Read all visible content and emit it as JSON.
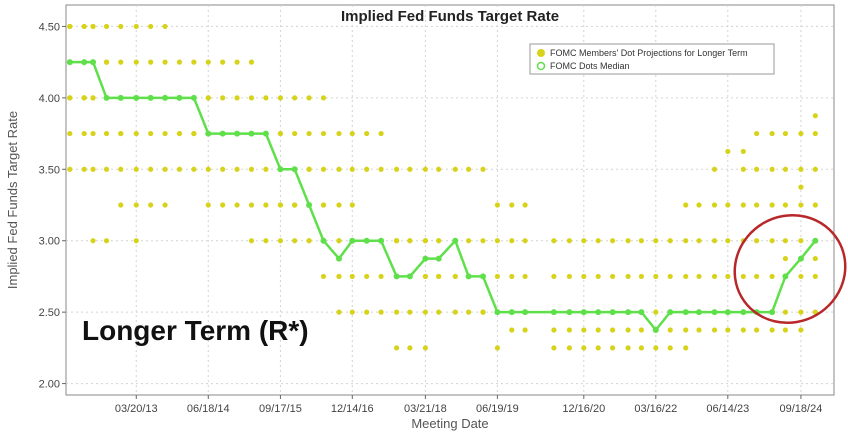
{
  "chart_data": {
    "type": "scatter",
    "title": "Implied Fed Funds Target Rate",
    "xlabel": "Meeting Date",
    "ylabel": "Implied Fed Funds Target Rate",
    "ylim": [
      1.92,
      4.65
    ],
    "yticks": [
      2.0,
      2.5,
      3.0,
      3.5,
      4.0,
      4.5
    ],
    "ytick_labels": [
      "2.00",
      "2.50",
      "3.00",
      "3.50",
      "4.00",
      "4.50"
    ],
    "xtick_labels": [
      "03/20/13",
      "06/18/14",
      "09/17/15",
      "12/14/16",
      "03/21/18",
      "06/19/19",
      "12/16/20",
      "03/16/22",
      "06/14/23",
      "09/18/24"
    ],
    "xtick_dates": [
      "2013-03-20",
      "2014-06-18",
      "2015-09-17",
      "2016-12-14",
      "2018-03-21",
      "2019-06-19",
      "2020-12-16",
      "2022-03-16",
      "2023-06-14",
      "2024-09-18"
    ],
    "xlim": [
      "2012-01-01",
      "2025-04-15"
    ],
    "grid": true,
    "legend_position": "top-right",
    "annotation": "Longer Term (R*)",
    "colors": {
      "dots": "#d7d31a",
      "median": "#5fe04a",
      "highlight_circle": "#b8282a"
    },
    "series": [
      {
        "name": "FOMC Members' Dot Projections for Longer Term",
        "kind": "dots",
        "meetings": [
          {
            "date": "2012-01-25",
            "values": [
              4.5,
              4.5,
              4.5,
              4.25,
              4.25,
              4.0,
              4.0,
              4.0,
              3.75,
              3.5
            ]
          },
          {
            "date": "2012-04-25",
            "values": [
              4.5,
              4.5,
              4.25,
              4.25,
              4.0,
              4.0,
              4.0,
              3.75,
              3.5
            ]
          },
          {
            "date": "2012-06-20",
            "values": [
              4.5,
              4.5,
              4.25,
              4.25,
              4.0,
              4.0,
              3.75,
              3.5,
              3.0
            ]
          },
          {
            "date": "2012-09-13",
            "values": [
              4.5,
              4.25,
              4.25,
              4.0,
              4.0,
              4.0,
              3.75,
              3.5,
              3.0
            ]
          },
          {
            "date": "2012-12-12",
            "values": [
              4.5,
              4.25,
              4.0,
              4.0,
              4.0,
              3.75,
              3.75,
              3.5,
              3.25
            ]
          },
          {
            "date": "2013-03-20",
            "values": [
              4.5,
              4.25,
              4.0,
              4.0,
              4.0,
              3.75,
              3.5,
              3.25,
              3.0
            ]
          },
          {
            "date": "2013-06-19",
            "values": [
              4.5,
              4.25,
              4.0,
              4.0,
              4.0,
              3.75,
              3.5,
              3.25
            ]
          },
          {
            "date": "2013-09-18",
            "values": [
              4.5,
              4.25,
              4.0,
              4.0,
              4.0,
              3.75,
              3.5,
              3.25
            ]
          },
          {
            "date": "2013-12-18",
            "values": [
              4.25,
              4.0,
              4.0,
              4.0,
              3.75,
              3.75,
              3.5
            ]
          },
          {
            "date": "2014-03-19",
            "values": [
              4.25,
              4.0,
              4.0,
              4.0,
              3.75,
              3.75,
              3.5
            ]
          },
          {
            "date": "2014-06-18",
            "values": [
              4.25,
              4.0,
              4.0,
              3.75,
              3.75,
              3.75,
              3.5,
              3.25
            ]
          },
          {
            "date": "2014-09-17",
            "values": [
              4.25,
              4.0,
              3.75,
              3.75,
              3.75,
              3.5,
              3.25
            ]
          },
          {
            "date": "2014-12-17",
            "values": [
              4.25,
              4.0,
              3.75,
              3.75,
              3.75,
              3.5,
              3.25
            ]
          },
          {
            "date": "2015-03-18",
            "values": [
              4.25,
              4.0,
              3.75,
              3.75,
              3.75,
              3.5,
              3.25,
              3.0
            ]
          },
          {
            "date": "2015-06-17",
            "values": [
              4.0,
              3.75,
              3.75,
              3.75,
              3.5,
              3.25,
              3.0
            ]
          },
          {
            "date": "2015-09-17",
            "values": [
              4.0,
              3.75,
              3.75,
              3.5,
              3.5,
              3.25,
              3.25,
              3.0
            ]
          },
          {
            "date": "2015-12-16",
            "values": [
              4.0,
              3.75,
              3.5,
              3.5,
              3.25,
              3.25,
              3.0
            ]
          },
          {
            "date": "2016-03-16",
            "values": [
              4.0,
              3.75,
              3.5,
              3.5,
              3.25,
              3.25,
              3.0,
              3.0
            ]
          },
          {
            "date": "2016-06-15",
            "values": [
              4.0,
              3.75,
              3.5,
              3.25,
              3.25,
              3.0,
              3.0,
              2.75
            ]
          },
          {
            "date": "2016-09-21",
            "values": [
              3.75,
              3.5,
              3.25,
              3.0,
              3.0,
              2.75,
              2.75,
              2.5
            ]
          },
          {
            "date": "2016-12-14",
            "values": [
              3.75,
              3.5,
              3.25,
              3.0,
              3.0,
              2.75,
              2.5
            ]
          },
          {
            "date": "2017-03-15",
            "values": [
              3.75,
              3.5,
              3.0,
              3.0,
              3.0,
              2.75,
              2.5
            ]
          },
          {
            "date": "2017-06-14",
            "values": [
              3.75,
              3.5,
              3.0,
              3.0,
              3.0,
              2.75,
              2.5
            ]
          },
          {
            "date": "2017-09-20",
            "values": [
              3.5,
              3.0,
              3.0,
              3.0,
              2.75,
              2.5,
              2.25
            ]
          },
          {
            "date": "2017-12-13",
            "values": [
              3.5,
              3.0,
              3.0,
              2.75,
              2.75,
              2.5,
              2.25
            ]
          },
          {
            "date": "2018-03-21",
            "values": [
              3.5,
              3.0,
              3.0,
              2.75,
              2.75,
              2.5,
              2.25
            ]
          },
          {
            "date": "2018-06-13",
            "values": [
              3.5,
              3.0,
              3.0,
              2.75,
              2.75,
              2.5
            ]
          },
          {
            "date": "2018-09-26",
            "values": [
              3.5,
              3.0,
              3.0,
              2.75,
              2.75,
              2.5
            ]
          },
          {
            "date": "2018-12-19",
            "values": [
              3.5,
              3.0,
              2.75,
              2.75,
              2.75,
              2.5
            ]
          },
          {
            "date": "2019-03-20",
            "values": [
              3.5,
              3.0,
              2.75,
              2.75,
              2.5,
              2.5
            ]
          },
          {
            "date": "2019-06-19",
            "values": [
              3.25,
              3.0,
              2.75,
              2.5,
              2.5,
              2.5,
              2.25
            ]
          },
          {
            "date": "2019-09-18",
            "values": [
              3.25,
              3.0,
              2.75,
              2.5,
              2.5,
              2.5,
              2.375
            ]
          },
          {
            "date": "2019-12-11",
            "values": [
              3.25,
              3.0,
              2.75,
              2.5,
              2.5,
              2.5,
              2.375
            ]
          },
          {
            "date": "2020-06-10",
            "values": [
              3.0,
              2.75,
              2.5,
              2.5,
              2.5,
              2.375,
              2.25
            ]
          },
          {
            "date": "2020-09-16",
            "values": [
              3.0,
              2.75,
              2.5,
              2.5,
              2.5,
              2.375,
              2.25
            ]
          },
          {
            "date": "2020-12-16",
            "values": [
              3.0,
              2.75,
              2.5,
              2.5,
              2.5,
              2.375,
              2.25
            ]
          },
          {
            "date": "2021-03-17",
            "values": [
              3.0,
              2.75,
              2.5,
              2.5,
              2.5,
              2.375,
              2.25
            ]
          },
          {
            "date": "2021-06-16",
            "values": [
              3.0,
              2.75,
              2.5,
              2.5,
              2.5,
              2.375,
              2.25
            ]
          },
          {
            "date": "2021-09-22",
            "values": [
              3.0,
              2.75,
              2.5,
              2.5,
              2.5,
              2.375,
              2.25
            ]
          },
          {
            "date": "2021-12-15",
            "values": [
              3.0,
              2.75,
              2.5,
              2.5,
              2.5,
              2.375,
              2.25
            ]
          },
          {
            "date": "2022-03-16",
            "values": [
              3.0,
              2.75,
              2.5,
              2.375,
              2.375,
              2.25
            ]
          },
          {
            "date": "2022-06-15",
            "values": [
              3.0,
              2.75,
              2.5,
              2.5,
              2.375,
              2.25
            ]
          },
          {
            "date": "2022-09-21",
            "values": [
              3.25,
              3.0,
              2.75,
              2.5,
              2.5,
              2.375,
              2.25
            ]
          },
          {
            "date": "2022-12-14",
            "values": [
              3.25,
              3.0,
              2.75,
              2.5,
              2.5,
              2.375
            ]
          },
          {
            "date": "2023-03-22",
            "values": [
              3.5,
              3.25,
              3.0,
              2.75,
              2.5,
              2.5,
              2.375
            ]
          },
          {
            "date": "2023-06-14",
            "values": [
              3.625,
              3.25,
              3.0,
              2.75,
              2.5,
              2.5,
              2.375
            ]
          },
          {
            "date": "2023-09-20",
            "values": [
              3.625,
              3.5,
              3.25,
              3.0,
              2.75,
              2.5,
              2.5,
              2.375
            ]
          },
          {
            "date": "2023-12-13",
            "values": [
              3.75,
              3.5,
              3.25,
              3.0,
              2.75,
              2.5,
              2.5,
              2.375
            ]
          },
          {
            "date": "2024-03-20",
            "values": [
              3.75,
              3.5,
              3.25,
              3.0,
              2.75,
              2.5,
              2.5,
              2.375
            ]
          },
          {
            "date": "2024-06-12",
            "values": [
              3.75,
              3.5,
              3.25,
              3.0,
              2.875,
              2.75,
              2.5,
              2.375
            ]
          },
          {
            "date": "2024-09-18",
            "values": [
              3.75,
              3.5,
              3.375,
              3.25,
              3.0,
              2.875,
              2.75,
              2.5,
              2.375
            ]
          },
          {
            "date": "2024-12-18",
            "values": [
              3.875,
              3.75,
              3.5,
              3.25,
              3.0,
              3.0,
              2.875,
              2.75,
              2.5
            ]
          }
        ]
      },
      {
        "name": "FOMC Dots Median",
        "kind": "line",
        "points": [
          [
            "2012-01-25",
            4.25
          ],
          [
            "2012-04-25",
            4.25
          ],
          [
            "2012-06-20",
            4.25
          ],
          [
            "2012-09-13",
            4.0
          ],
          [
            "2012-12-12",
            4.0
          ],
          [
            "2013-03-20",
            4.0
          ],
          [
            "2013-06-19",
            4.0
          ],
          [
            "2013-09-18",
            4.0
          ],
          [
            "2013-12-18",
            4.0
          ],
          [
            "2014-03-19",
            4.0
          ],
          [
            "2014-06-18",
            3.75
          ],
          [
            "2014-09-17",
            3.75
          ],
          [
            "2014-12-17",
            3.75
          ],
          [
            "2015-03-18",
            3.75
          ],
          [
            "2015-06-17",
            3.75
          ],
          [
            "2015-09-17",
            3.5
          ],
          [
            "2015-12-16",
            3.5
          ],
          [
            "2016-03-16",
            3.25
          ],
          [
            "2016-06-15",
            3.0
          ],
          [
            "2016-09-21",
            2.875
          ],
          [
            "2016-12-14",
            3.0
          ],
          [
            "2017-03-15",
            3.0
          ],
          [
            "2017-06-14",
            3.0
          ],
          [
            "2017-09-20",
            2.75
          ],
          [
            "2017-12-13",
            2.75
          ],
          [
            "2018-03-21",
            2.875
          ],
          [
            "2018-06-13",
            2.875
          ],
          [
            "2018-09-26",
            3.0
          ],
          [
            "2018-12-19",
            2.75
          ],
          [
            "2019-03-20",
            2.75
          ],
          [
            "2019-06-19",
            2.5
          ],
          [
            "2019-09-18",
            2.5
          ],
          [
            "2019-12-11",
            2.5
          ],
          [
            "2020-06-10",
            2.5
          ],
          [
            "2020-09-16",
            2.5
          ],
          [
            "2020-12-16",
            2.5
          ],
          [
            "2021-03-17",
            2.5
          ],
          [
            "2021-06-16",
            2.5
          ],
          [
            "2021-09-22",
            2.5
          ],
          [
            "2021-12-15",
            2.5
          ],
          [
            "2022-03-16",
            2.375
          ],
          [
            "2022-06-15",
            2.5
          ],
          [
            "2022-09-21",
            2.5
          ],
          [
            "2022-12-14",
            2.5
          ],
          [
            "2023-03-22",
            2.5
          ],
          [
            "2023-06-14",
            2.5
          ],
          [
            "2023-09-20",
            2.5
          ],
          [
            "2023-12-13",
            2.5
          ],
          [
            "2024-03-20",
            2.5
          ],
          [
            "2024-06-12",
            2.75
          ],
          [
            "2024-09-18",
            2.875
          ],
          [
            "2024-12-18",
            3.0
          ]
        ]
      }
    ]
  }
}
